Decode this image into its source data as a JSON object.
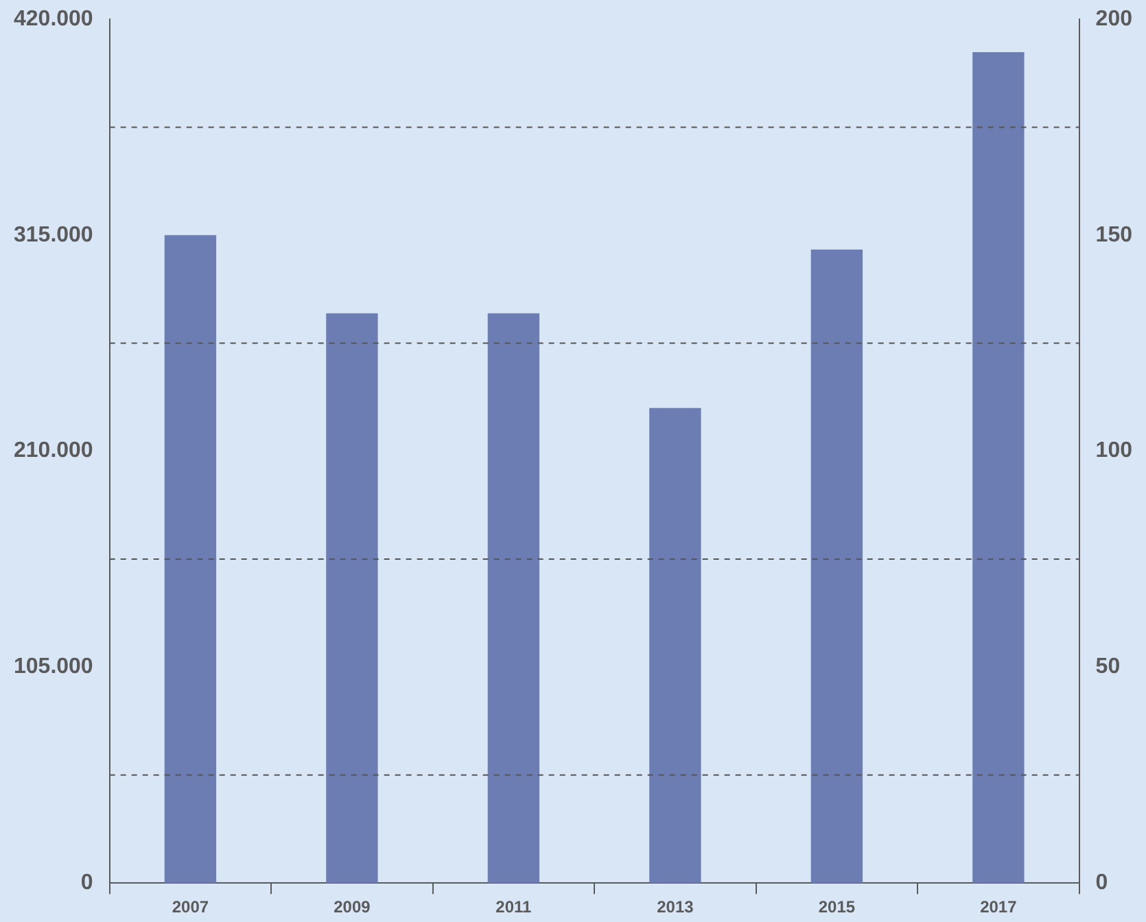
{
  "chart_data": {
    "type": "bar",
    "categories": [
      "2007",
      "2009",
      "2011",
      "2013",
      "2015",
      "2017"
    ],
    "series": [
      {
        "color": "#6b7db3",
        "values": [
          315000,
          277000,
          277000,
          231000,
          308000,
          404000
        ]
      }
    ],
    "ylim": [
      0,
      420000
    ],
    "yticks": [
      {
        "value": 0,
        "label": "0"
      },
      {
        "value": 105000,
        "label": "105.000"
      },
      {
        "value": 210000,
        "label": "210.000"
      },
      {
        "value": 315000,
        "label": "315.000"
      },
      {
        "value": 420000,
        "label": "420.000"
      }
    ],
    "y2lim": [
      0,
      200
    ],
    "y2ticks": [
      0,
      50,
      100,
      150,
      200
    ],
    "ref_lines": [
      {
        "axis": "y2",
        "value": 25,
        "line_style": "dashed",
        "color": "#555555"
      },
      {
        "axis": "y2",
        "value": 75,
        "line_style": "dashed",
        "color": "#555555"
      },
      {
        "axis": "y2",
        "value": 125,
        "line_style": "dashed",
        "color": "#555555"
      },
      {
        "axis": "y2",
        "value": 175,
        "line_style": "dashed",
        "color": "#555555"
      }
    ],
    "grid": false,
    "legend": false
  }
}
